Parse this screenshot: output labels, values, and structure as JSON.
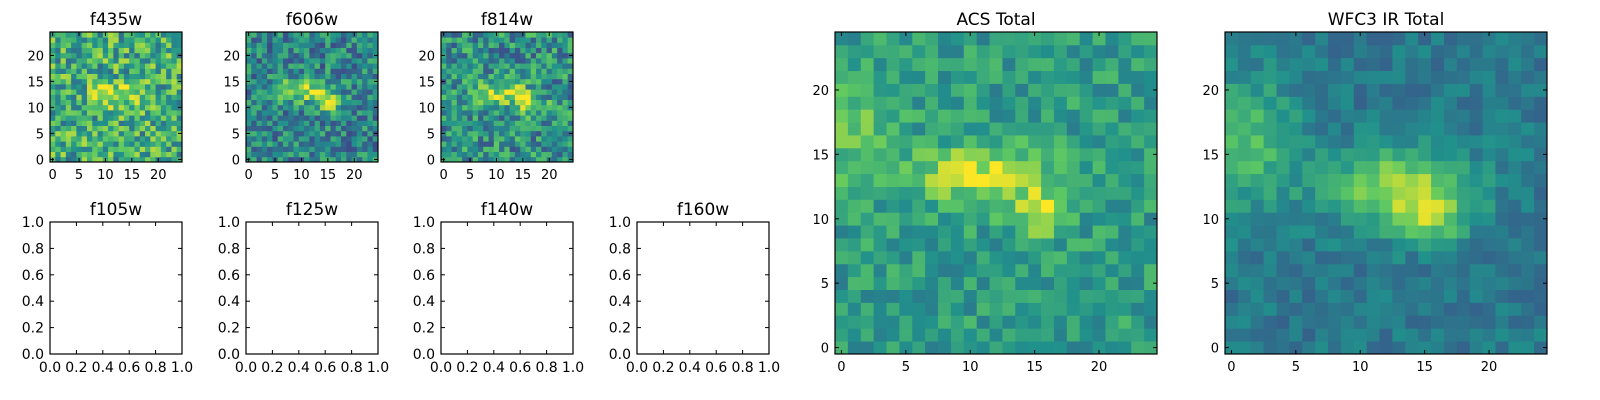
{
  "chart_data": [
    {
      "type": "heatmap",
      "title": "f435w",
      "xlim": [
        0,
        24
      ],
      "ylim": [
        0,
        24
      ],
      "xticks": [
        "0",
        "5",
        "10",
        "15",
        "20"
      ],
      "yticks": [
        "0",
        "5",
        "10",
        "15",
        "20"
      ],
      "colormap": "viridis",
      "noise": 0.55,
      "peak": 0.55,
      "bg_level": 0.62,
      "blob": [
        {
          "x": 12,
          "y": 12.5,
          "sx": 3.0,
          "sy": 1.6,
          "amp": 0.35
        }
      ]
    },
    {
      "type": "heatmap",
      "title": "f606w",
      "xlim": [
        0,
        24
      ],
      "ylim": [
        0,
        24
      ],
      "xticks": [
        "0",
        "5",
        "10",
        "15",
        "20"
      ],
      "yticks": [
        "0",
        "5",
        "10",
        "15",
        "20"
      ],
      "colormap": "viridis",
      "noise": 0.45,
      "peak": 0.6,
      "bg_level": 0.45,
      "blob": [
        {
          "x": 10,
          "y": 13.5,
          "sx": 3.5,
          "sy": 1.5,
          "amp": 0.45
        },
        {
          "x": 15,
          "y": 11,
          "sx": 2,
          "sy": 1.3,
          "amp": 0.4
        }
      ]
    },
    {
      "type": "heatmap",
      "title": "f814w",
      "xlim": [
        0,
        24
      ],
      "ylim": [
        0,
        24
      ],
      "xticks": [
        "0",
        "5",
        "10",
        "15",
        "20"
      ],
      "yticks": [
        "0",
        "5",
        "10",
        "15",
        "20"
      ],
      "colormap": "viridis",
      "noise": 0.5,
      "peak": 0.6,
      "bg_level": 0.5,
      "blob": [
        {
          "x": 11,
          "y": 13,
          "sx": 3.5,
          "sy": 1.5,
          "amp": 0.4
        },
        {
          "x": 16,
          "y": 10.5,
          "sx": 2,
          "sy": 1.3,
          "amp": 0.45
        }
      ]
    },
    {
      "type": "scatter",
      "title": "f105w",
      "xlim": [
        0,
        1
      ],
      "ylim": [
        0,
        1
      ],
      "xticks": [
        "0.0",
        "0.2",
        "0.4",
        "0.6",
        "0.8",
        "1.0"
      ],
      "yticks": [
        "0.0",
        "0.2",
        "0.4",
        "0.6",
        "0.8",
        "1.0"
      ],
      "series": []
    },
    {
      "type": "scatter",
      "title": "f125w",
      "xlim": [
        0,
        1
      ],
      "ylim": [
        0,
        1
      ],
      "xticks": [
        "0.0",
        "0.2",
        "0.4",
        "0.6",
        "0.8",
        "1.0"
      ],
      "yticks": [
        "0.0",
        "0.2",
        "0.4",
        "0.6",
        "0.8",
        "1.0"
      ],
      "series": []
    },
    {
      "type": "scatter",
      "title": "f140w",
      "xlim": [
        0,
        1
      ],
      "ylim": [
        0,
        1
      ],
      "xticks": [
        "0.0",
        "0.2",
        "0.4",
        "0.6",
        "0.8",
        "1.0"
      ],
      "yticks": [
        "0.0",
        "0.2",
        "0.4",
        "0.6",
        "0.8",
        "1.0"
      ],
      "series": []
    },
    {
      "type": "scatter",
      "title": "f160w",
      "xlim": [
        0,
        1
      ],
      "ylim": [
        0,
        1
      ],
      "xticks": [
        "0.0",
        "0.2",
        "0.4",
        "0.6",
        "0.8",
        "1.0"
      ],
      "yticks": [
        "0.0",
        "0.2",
        "0.4",
        "0.6",
        "0.8",
        "1.0"
      ],
      "series": []
    },
    {
      "type": "heatmap",
      "title": "ACS Total",
      "xlim": [
        0,
        24
      ],
      "ylim": [
        0,
        24
      ],
      "xticks": [
        "0",
        "5",
        "10",
        "15",
        "20"
      ],
      "yticks": [
        "0",
        "5",
        "10",
        "15",
        "20"
      ],
      "colormap": "viridis",
      "noise": 0.28,
      "peak": 0.6,
      "bg_level": 0.55,
      "blob": [
        {
          "x": 11,
          "y": 13.5,
          "sx": 4,
          "sy": 1.6,
          "amp": 0.35
        },
        {
          "x": 15.5,
          "y": 10.5,
          "sx": 1.6,
          "sy": 1.2,
          "amp": 0.35
        },
        {
          "x": 1,
          "y": 17,
          "sx": 2,
          "sy": 3,
          "amp": 0.2
        }
      ]
    },
    {
      "type": "heatmap",
      "title": "WFC3 IR Total",
      "xlim": [
        0,
        24
      ],
      "ylim": [
        0,
        24
      ],
      "xticks": [
        "0",
        "5",
        "10",
        "15",
        "20"
      ],
      "yticks": [
        "0",
        "5",
        "10",
        "15",
        "20"
      ],
      "colormap": "viridis",
      "noise": 0.18,
      "peak": 0.7,
      "bg_level": 0.4,
      "blob": [
        {
          "x": 13,
          "y": 12.5,
          "sx": 4,
          "sy": 2,
          "amp": 0.45
        },
        {
          "x": 15.5,
          "y": 10,
          "sx": 2,
          "sy": 1.5,
          "amp": 0.3
        },
        {
          "x": 1,
          "y": 16,
          "sx": 3,
          "sy": 3.5,
          "amp": 0.3
        }
      ]
    }
  ]
}
